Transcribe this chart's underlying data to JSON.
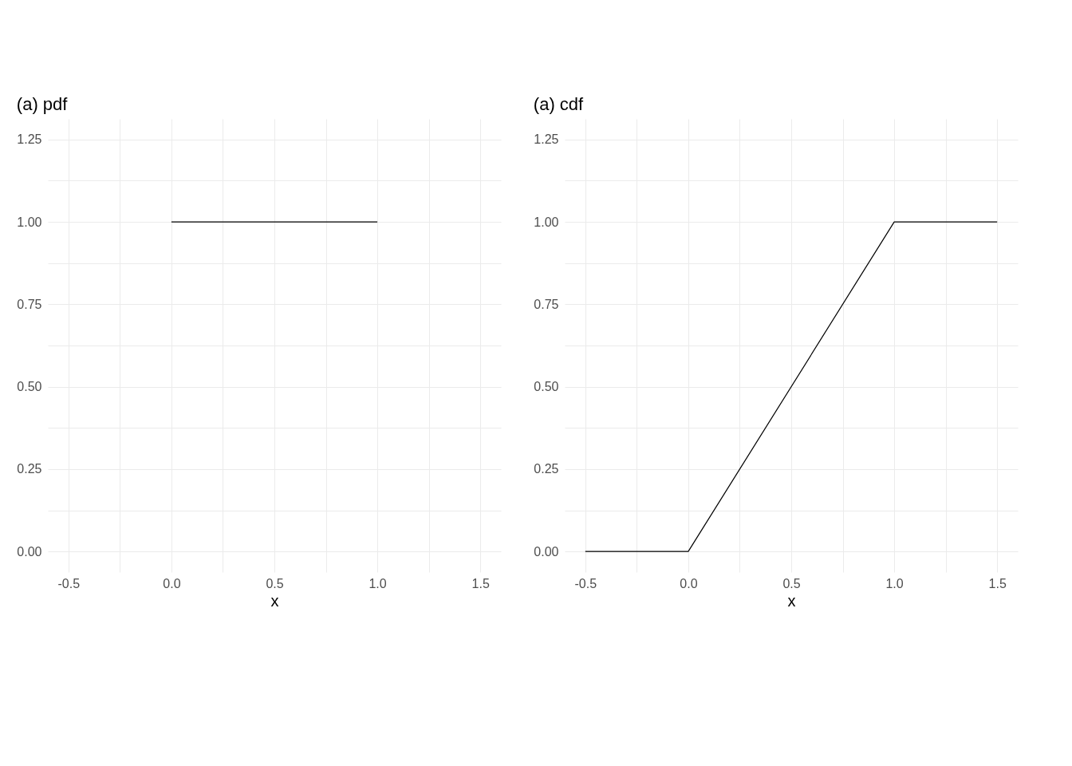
{
  "chart_data": [
    {
      "type": "line",
      "title": "(a) pdf",
      "xlabel": "x",
      "series": [
        {
          "color": "#000000",
          "x": [
            0,
            1
          ],
          "values": [
            1,
            1
          ]
        }
      ],
      "xlim": [
        -0.6,
        1.6
      ],
      "ylim": [
        -0.0625,
        1.3125
      ],
      "xticks": [
        {
          "value": -0.5,
          "label": "-0.5"
        },
        {
          "value": -0.25,
          "label": null
        },
        {
          "value": 0,
          "label": "0.0"
        },
        {
          "value": 0.25,
          "label": null
        },
        {
          "value": 0.5,
          "label": "0.5"
        },
        {
          "value": 0.75,
          "label": null
        },
        {
          "value": 1,
          "label": "1.0"
        },
        {
          "value": 1.25,
          "label": null
        },
        {
          "value": 1.5,
          "label": "1.5"
        }
      ],
      "yticks": [
        {
          "value": 0,
          "label": "0.00"
        },
        {
          "value": 0.125,
          "label": null
        },
        {
          "value": 0.25,
          "label": "0.25"
        },
        {
          "value": 0.375,
          "label": null
        },
        {
          "value": 0.5,
          "label": "0.50"
        },
        {
          "value": 0.625,
          "label": null
        },
        {
          "value": 0.75,
          "label": "0.75"
        },
        {
          "value": 0.875,
          "label": null
        },
        {
          "value": 1,
          "label": "1.00"
        },
        {
          "value": 1.125,
          "label": null
        },
        {
          "value": 1.25,
          "label": "1.25"
        }
      ],
      "grid": true
    },
    {
      "type": "line",
      "title": "(a) cdf",
      "xlabel": "x",
      "series": [
        {
          "color": "#000000",
          "x": [
            -0.5,
            0,
            1,
            1.5
          ],
          "values": [
            0,
            0,
            1,
            1
          ]
        }
      ],
      "xlim": [
        -0.6,
        1.6
      ],
      "ylim": [
        -0.0625,
        1.3125
      ],
      "xticks": [
        {
          "value": -0.5,
          "label": "-0.5"
        },
        {
          "value": -0.25,
          "label": null
        },
        {
          "value": 0,
          "label": "0.0"
        },
        {
          "value": 0.25,
          "label": null
        },
        {
          "value": 0.5,
          "label": "0.5"
        },
        {
          "value": 0.75,
          "label": null
        },
        {
          "value": 1,
          "label": "1.0"
        },
        {
          "value": 1.25,
          "label": null
        },
        {
          "value": 1.5,
          "label": "1.5"
        }
      ],
      "yticks": [
        {
          "value": 0,
          "label": "0.00"
        },
        {
          "value": 0.125,
          "label": null
        },
        {
          "value": 0.25,
          "label": "0.25"
        },
        {
          "value": 0.375,
          "label": null
        },
        {
          "value": 0.5,
          "label": "0.50"
        },
        {
          "value": 0.625,
          "label": null
        },
        {
          "value": 0.75,
          "label": "0.75"
        },
        {
          "value": 0.875,
          "label": null
        },
        {
          "value": 1,
          "label": "1.00"
        },
        {
          "value": 1.125,
          "label": null
        },
        {
          "value": 1.25,
          "label": "1.25"
        }
      ],
      "grid": true
    }
  ]
}
